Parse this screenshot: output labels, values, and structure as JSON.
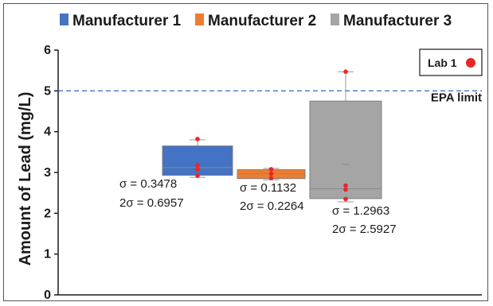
{
  "chart_data": {
    "type": "box",
    "ylabel": "Amount of Lead (mg/L)",
    "ylim": [
      0,
      6
    ],
    "yticks": [
      0,
      1,
      2,
      3,
      4,
      5,
      6
    ],
    "grid": false,
    "legend": {
      "placement": "top",
      "entries": [
        {
          "name": "Manufacturer 1",
          "color": "#4472c4"
        },
        {
          "name": "Manufacturer 2",
          "color": "#ed7d31"
        },
        {
          "name": "Manufacturer 3",
          "color": "#a5a5a5"
        }
      ]
    },
    "reference_line": {
      "label": "EPA limit",
      "value": 5.0,
      "color": "#4472c4"
    },
    "inset_label": {
      "text": "Lab 1",
      "marker_color": "#e8262a"
    },
    "series": [
      {
        "name": "Manufacturer 1",
        "color": "#4472c4",
        "box": {
          "q1": 2.93,
          "median": 3.12,
          "q3": 3.65,
          "whisker_low": 2.88,
          "whisker_high": 3.8
        },
        "points": [
          3.82,
          3.18,
          3.08,
          2.92
        ],
        "sigma": "σ = 0.3478",
        "two_sigma": "2σ = 0.6957"
      },
      {
        "name": "Manufacturer 2",
        "color": "#ed7d31",
        "box": {
          "q1": 2.85,
          "median": 2.97,
          "q3": 3.07,
          "whisker_low": 2.82,
          "whisker_high": 3.1
        },
        "points": [
          3.08,
          2.97,
          2.86
        ],
        "sigma": "σ = 0.1132",
        "two_sigma": "2σ = 0.2264"
      },
      {
        "name": "Manufacturer 3",
        "color": "#a5a5a5",
        "box": {
          "q1": 2.36,
          "median": 2.6,
          "q3": 4.75,
          "whisker_low": 2.28,
          "whisker_high": 5.47,
          "mean": 3.2
        },
        "points": [
          5.47,
          2.68,
          2.58,
          2.35
        ],
        "sigma": "σ = 1.2963",
        "two_sigma": "2σ = 2.5927"
      }
    ]
  }
}
